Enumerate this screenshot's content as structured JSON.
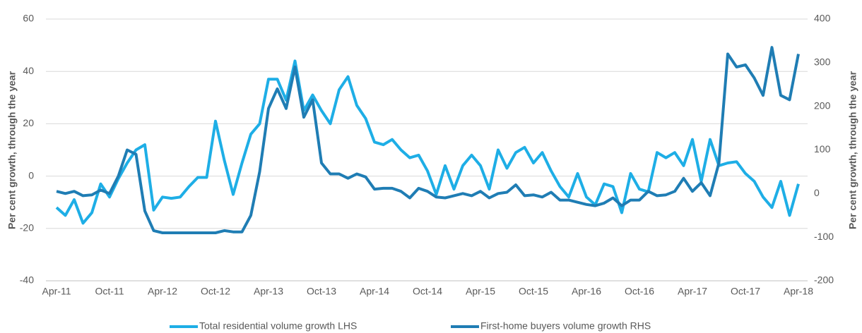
{
  "chart_data": {
    "type": "line",
    "ylabel": "Per cent growth, through the year",
    "y2label": "Per cent growth, through the year",
    "categories": [
      "Apr-11",
      null,
      null,
      null,
      null,
      null,
      "Oct-11",
      null,
      null,
      null,
      null,
      null,
      "Apr-12",
      null,
      null,
      null,
      null,
      null,
      "Oct-12",
      null,
      null,
      null,
      null,
      null,
      "Apr-13",
      null,
      null,
      null,
      null,
      null,
      "Oct-13",
      null,
      null,
      null,
      null,
      null,
      "Apr-14",
      null,
      null,
      null,
      null,
      null,
      "Oct-14",
      null,
      null,
      null,
      null,
      null,
      "Apr-15",
      null,
      null,
      null,
      null,
      null,
      "Oct-15",
      null,
      null,
      null,
      null,
      null,
      "Apr-16",
      null,
      null,
      null,
      null,
      null,
      "Oct-16",
      null,
      null,
      null,
      null,
      null,
      "Apr-17",
      null,
      null,
      null,
      null,
      null,
      "Oct-17",
      null,
      null,
      null,
      null,
      null,
      "Apr-18"
    ],
    "series": [
      {
        "name": "Total residential volume growth LHS",
        "color": "#1eaee6",
        "axis": "y",
        "values": [
          -12,
          -15,
          -9,
          -18,
          -14,
          -3,
          -8,
          -1,
          5,
          10,
          12,
          -13,
          -8,
          -8.5,
          -8,
          -4,
          -0.5,
          -0.5,
          21,
          6,
          -7,
          5,
          16,
          20,
          37,
          37,
          29,
          44,
          25,
          31,
          25,
          20,
          33,
          38,
          27,
          22,
          13,
          12,
          14,
          10,
          7,
          8,
          2,
          -7,
          4,
          -5,
          4,
          8,
          4,
          -5,
          10,
          3,
          9,
          11,
          5,
          9,
          2,
          -4,
          -8,
          1,
          -8,
          -11,
          -3,
          -4,
          -14,
          1,
          -5,
          -6,
          9,
          7,
          9,
          4,
          14,
          -2,
          14,
          4,
          5,
          5.5,
          1,
          -2,
          -8,
          -12,
          -2,
          -15,
          -3
        ]
      },
      {
        "name": "First-home buyers volume growth RHS",
        "color": "#1f7db4",
        "axis": "y2",
        "values": [
          5,
          0,
          5,
          -5,
          -3,
          8,
          0,
          40,
          100,
          90,
          -40,
          -85,
          -90,
          -90,
          -90,
          -90,
          -90,
          -90,
          -90,
          -85,
          -88,
          -88,
          -50,
          50,
          195,
          240,
          195,
          290,
          175,
          215,
          70,
          45,
          45,
          35,
          45,
          38,
          10,
          12,
          12,
          5,
          -10,
          12,
          5,
          -8,
          -10,
          -5,
          0,
          -5,
          5,
          -10,
          0,
          3,
          20,
          -5,
          -3,
          -8,
          3,
          -15,
          -15,
          -20,
          -25,
          -28,
          -22,
          -10,
          -28,
          -15,
          -15,
          5,
          -5,
          -3,
          5,
          35,
          5,
          25,
          -5,
          70,
          320,
          290,
          295,
          265,
          225,
          335,
          225,
          215,
          320
        ]
      }
    ],
    "ylim": [
      -40,
      60
    ],
    "yticks": [
      -40,
      -20,
      0,
      20,
      40,
      60
    ],
    "y2lim": [
      -200,
      400
    ],
    "y2ticks": [
      -200,
      -100,
      0,
      100,
      200,
      300,
      400
    ],
    "grid": true,
    "legend": "bottom"
  }
}
